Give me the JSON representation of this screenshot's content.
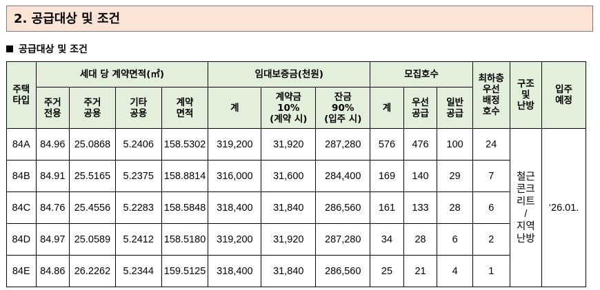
{
  "section_title": "2. 공급대상 및 조건",
  "subheading": "공급대상 및 조건",
  "table": {
    "headers": {
      "type": "주택\n타입",
      "area_group": "세대 당 계약면적(㎡)",
      "area_cols": [
        "주거\n전용",
        "주거\n공용",
        "기타\n공용",
        "계약\n면적"
      ],
      "deposit_group": "임대보증금(천원)",
      "deposit_cols": [
        "계",
        "계약금\n10%\n(계약 시)",
        "잔금\n90%\n(입주 시)"
      ],
      "recruit_group": "모집호수",
      "recruit_cols": [
        "계",
        "우선\n공급",
        "일반\n공급"
      ],
      "min_floor": "최하층\n우선\n배정\n호수",
      "structure": "구조\n및\n난방",
      "move_in": "입주\n예정"
    },
    "rows": [
      [
        "84A",
        "84.96",
        "25.0868",
        "5.2406",
        "158.5302",
        "319,200",
        "31,920",
        "287,280",
        "576",
        "476",
        "100",
        "24"
      ],
      [
        "84B",
        "84.91",
        "25.5165",
        "5.2375",
        "158.8814",
        "316,000",
        "31,600",
        "284,400",
        "169",
        "140",
        "29",
        "7"
      ],
      [
        "84C",
        "84.76",
        "25.4556",
        "5.2283",
        "158.5848",
        "318,400",
        "31,840",
        "286,560",
        "161",
        "133",
        "28",
        "6"
      ],
      [
        "84D",
        "84.97",
        "25.0589",
        "5.2412",
        "158.5180",
        "319,200",
        "31,920",
        "287,280",
        "34",
        "28",
        "6",
        "2"
      ],
      [
        "84E",
        "84.86",
        "26.2262",
        "5.2344",
        "159.5125",
        "318,400",
        "31,840",
        "286,560",
        "25",
        "21",
        "4",
        "1"
      ]
    ],
    "structure_value": "철근\n콘크\n리트\n/\n지역\n난방",
    "move_in_value": "‘26.01."
  },
  "colors": {
    "title_bg": "#fbe4d5",
    "header_bg": "#e2efda"
  }
}
